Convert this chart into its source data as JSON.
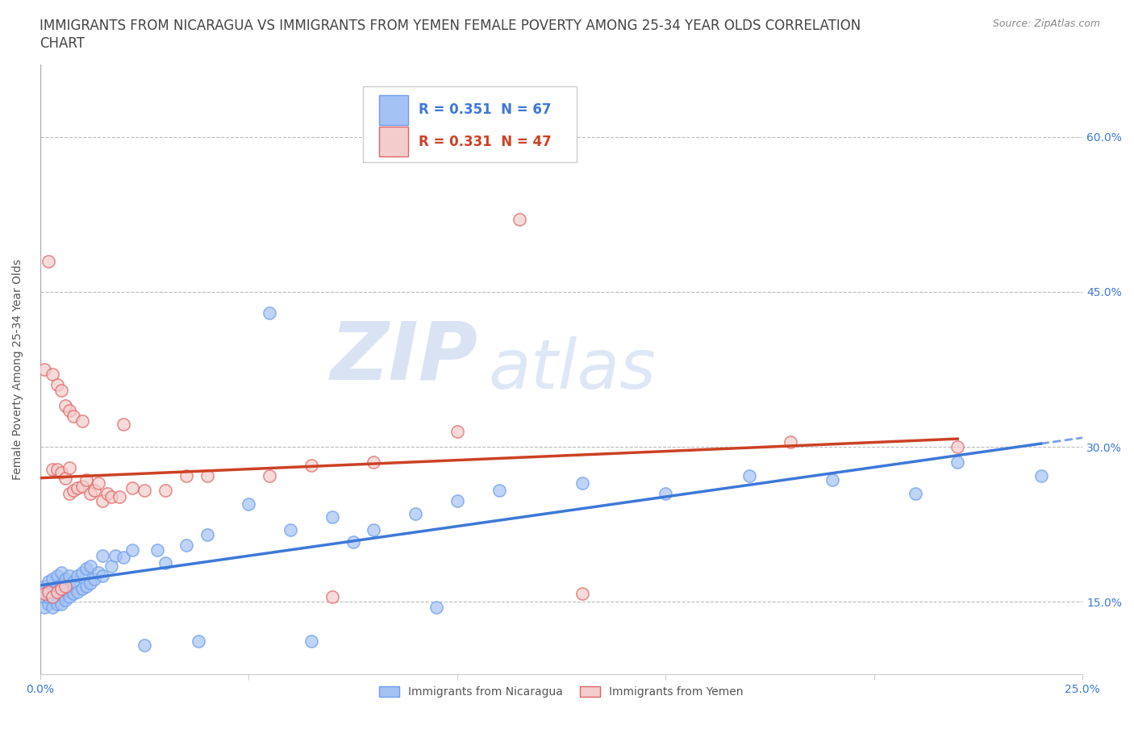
{
  "title_line1": "IMMIGRANTS FROM NICARAGUA VS IMMIGRANTS FROM YEMEN FEMALE POVERTY AMONG 25-34 YEAR OLDS CORRELATION",
  "title_line2": "CHART",
  "source": "Source: ZipAtlas.com",
  "ylabel": "Female Poverty Among 25-34 Year Olds",
  "xlim": [
    0.0,
    0.25
  ],
  "ylim": [
    0.08,
    0.67
  ],
  "xticks": [
    0.0,
    0.05,
    0.1,
    0.15,
    0.2,
    0.25
  ],
  "yticks": [
    0.15,
    0.3,
    0.45,
    0.6
  ],
  "yticklabels": [
    "15.0%",
    "30.0%",
    "45.0%",
    "60.0%"
  ],
  "blue_color": "#a4c2f4",
  "blue_edge_color": "#6d9eeb",
  "pink_color": "#f4cccc",
  "pink_edge_color": "#e06666",
  "blue_line_color": "#3d78d8",
  "pink_line_color": "#cc4125",
  "legend_R_nicaragua": "R = 0.351",
  "legend_N_nicaragua": "N = 67",
  "legend_R_yemen": "R = 0.331",
  "legend_N_yemen": "N = 47",
  "series_nicaragua_label": "Immigrants from Nicaragua",
  "series_yemen_label": "Immigrants from Yemen",
  "watermark_zip": "ZIP",
  "watermark_atlas": "atlas",
  "blue_scatter_x": [
    0.001,
    0.001,
    0.001,
    0.002,
    0.002,
    0.002,
    0.002,
    0.003,
    0.003,
    0.003,
    0.003,
    0.004,
    0.004,
    0.004,
    0.004,
    0.005,
    0.005,
    0.005,
    0.005,
    0.006,
    0.006,
    0.006,
    0.007,
    0.007,
    0.007,
    0.008,
    0.008,
    0.009,
    0.009,
    0.01,
    0.01,
    0.011,
    0.011,
    0.012,
    0.012,
    0.013,
    0.014,
    0.015,
    0.015,
    0.017,
    0.018,
    0.02,
    0.022,
    0.025,
    0.028,
    0.03,
    0.035,
    0.038,
    0.04,
    0.05,
    0.055,
    0.06,
    0.065,
    0.07,
    0.075,
    0.08,
    0.09,
    0.095,
    0.1,
    0.11,
    0.13,
    0.15,
    0.17,
    0.19,
    0.21,
    0.22,
    0.24
  ],
  "blue_scatter_y": [
    0.145,
    0.155,
    0.165,
    0.148,
    0.155,
    0.162,
    0.17,
    0.145,
    0.155,
    0.163,
    0.172,
    0.148,
    0.158,
    0.165,
    0.175,
    0.148,
    0.157,
    0.167,
    0.178,
    0.152,
    0.162,
    0.172,
    0.155,
    0.165,
    0.175,
    0.158,
    0.17,
    0.16,
    0.175,
    0.163,
    0.178,
    0.165,
    0.182,
    0.168,
    0.185,
    0.172,
    0.178,
    0.175,
    0.195,
    0.185,
    0.195,
    0.193,
    0.2,
    0.108,
    0.2,
    0.188,
    0.205,
    0.112,
    0.215,
    0.245,
    0.43,
    0.22,
    0.112,
    0.232,
    0.208,
    0.22,
    0.235,
    0.145,
    0.248,
    0.258,
    0.265,
    0.255,
    0.272,
    0.268,
    0.255,
    0.285,
    0.272
  ],
  "pink_scatter_x": [
    0.001,
    0.001,
    0.002,
    0.002,
    0.003,
    0.003,
    0.003,
    0.004,
    0.004,
    0.004,
    0.005,
    0.005,
    0.005,
    0.006,
    0.006,
    0.006,
    0.007,
    0.007,
    0.007,
    0.008,
    0.008,
    0.009,
    0.01,
    0.01,
    0.011,
    0.012,
    0.013,
    0.014,
    0.015,
    0.016,
    0.017,
    0.019,
    0.02,
    0.022,
    0.025,
    0.03,
    0.035,
    0.04,
    0.055,
    0.065,
    0.07,
    0.08,
    0.1,
    0.115,
    0.13,
    0.18,
    0.22
  ],
  "pink_scatter_y": [
    0.158,
    0.375,
    0.16,
    0.48,
    0.155,
    0.278,
    0.37,
    0.16,
    0.278,
    0.36,
    0.163,
    0.275,
    0.355,
    0.165,
    0.27,
    0.34,
    0.255,
    0.28,
    0.335,
    0.258,
    0.33,
    0.26,
    0.262,
    0.325,
    0.268,
    0.255,
    0.258,
    0.265,
    0.248,
    0.255,
    0.252,
    0.252,
    0.322,
    0.26,
    0.258,
    0.258,
    0.272,
    0.272,
    0.272,
    0.282,
    0.155,
    0.285,
    0.315,
    0.52,
    0.158,
    0.305,
    0.3
  ],
  "background_color": "#ffffff",
  "grid_color": "#bbbbbb",
  "title_fontsize": 12,
  "axis_label_fontsize": 10,
  "tick_fontsize": 10,
  "tick_color": "#3d78d8",
  "legend_fontsize": 12
}
